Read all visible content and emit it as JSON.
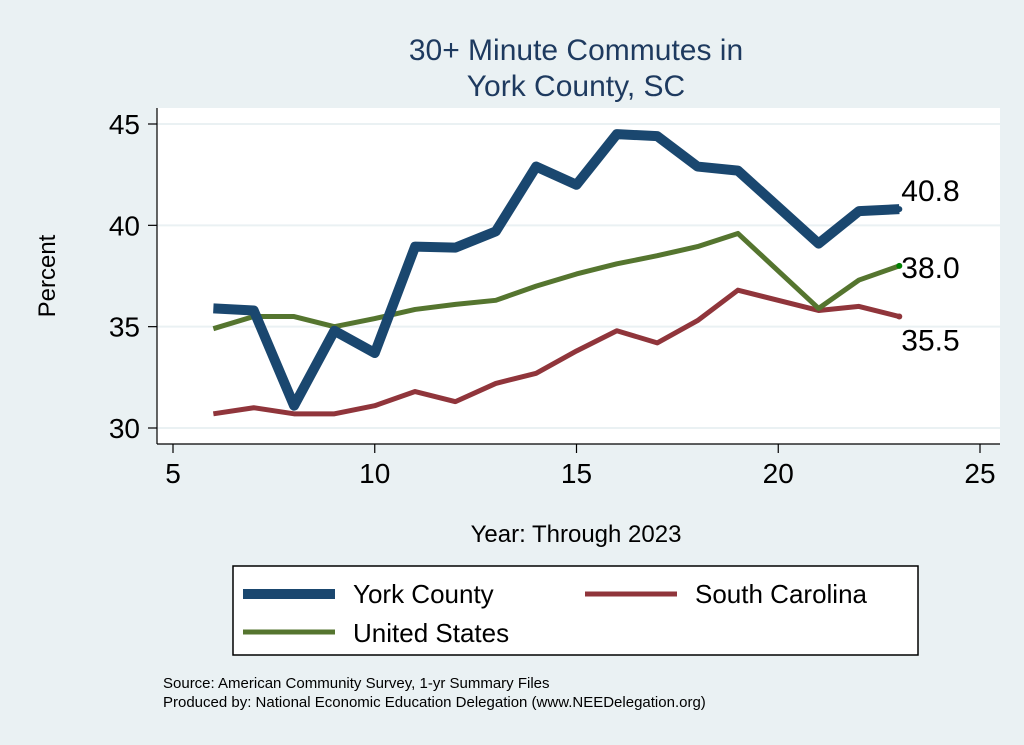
{
  "chart_data": {
    "type": "line",
    "title": "30+ Minute Commutes in",
    "title_line2": "York County, SC",
    "xlabel": "Year: Through 2023",
    "ylabel": "Percent",
    "xlim": [
      5,
      25
    ],
    "ylim": [
      30,
      45
    ],
    "xticks": [
      "5",
      "10",
      "15",
      "20",
      "25"
    ],
    "yticks": [
      "30",
      "35",
      "40",
      "45"
    ],
    "grid": "horizontal",
    "legend_placement": "bottom",
    "x": [
      6,
      7,
      8,
      9,
      10,
      11,
      12,
      13,
      14,
      15,
      16,
      17,
      18,
      19,
      21,
      22,
      23
    ],
    "series": [
      {
        "name": "York County",
        "color": "#1a476f",
        "values": [
          35.9,
          35.8,
          31.1,
          34.8,
          33.7,
          38.95,
          38.9,
          39.7,
          42.9,
          42.0,
          44.5,
          44.4,
          42.9,
          42.7,
          39.1,
          40.7,
          40.8
        ],
        "end_label": "40.8"
      },
      {
        "name": "South Carolina",
        "color": "#90353b",
        "values": [
          30.7,
          31.0,
          30.7,
          30.7,
          31.1,
          31.8,
          31.3,
          32.2,
          32.7,
          33.8,
          34.8,
          34.2,
          35.3,
          36.8,
          35.8,
          36.0,
          35.5
        ],
        "end_label": "35.5"
      },
      {
        "name": "United States",
        "color": "#55752f",
        "values": [
          34.9,
          35.5,
          35.5,
          35.0,
          35.4,
          35.85,
          36.1,
          36.3,
          37.0,
          37.6,
          38.1,
          38.5,
          38.95,
          39.6,
          35.9,
          37.3,
          38.0
        ],
        "end_label": "38.0"
      }
    ],
    "notes": [
      "Source: American Community Survey, 1-yr Summary Files",
      "Produced by: National Economic Education Delegation (www.NEEDelegation.org)"
    ]
  }
}
